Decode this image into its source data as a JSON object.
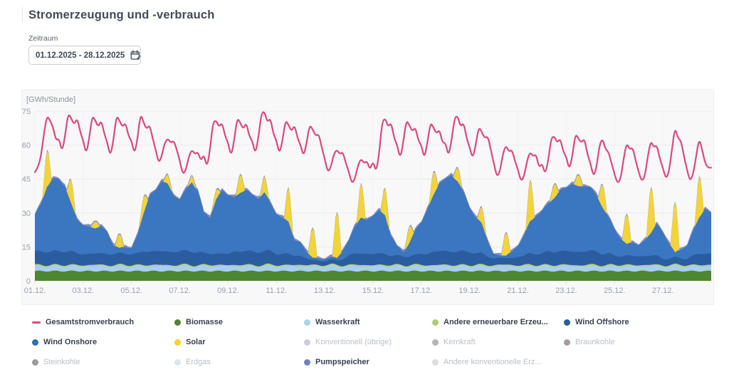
{
  "page": {
    "title": "Stromerzeugung und -verbrauch"
  },
  "filter": {
    "label": "Zeitraum",
    "value": "01.12.2025 - 28.12.2025",
    "icon": "calendar-edit-icon"
  },
  "chart": {
    "unit_label": "[GWh/Stunde]",
    "colors": {
      "plot_bg": "#f8f8f8",
      "grid": "#ececee",
      "grid_zero": "#e2e3e5",
      "grid_vertical": "#f1f2f3",
      "tick": "#d9dadc",
      "axis_text": "#9aa0a8"
    }
  },
  "chart_data": {
    "type": "area",
    "title": "Stromerzeugung und -verbrauch",
    "xlabel": "",
    "ylabel": "[GWh/Stunde]",
    "x_range": [
      "01.12.2025",
      "28.12.2025"
    ],
    "ylim": [
      0,
      78
    ],
    "y_ticks": [
      0,
      15,
      30,
      45,
      60,
      75
    ],
    "x_ticks": [
      "01.12.",
      "03.12.",
      "05.12.",
      "07.12.",
      "09.12.",
      "11.12.",
      "13.12.",
      "15.12.",
      "17.12.",
      "19.12.",
      "21.12.",
      "23.12.",
      "25.12.",
      "27.12."
    ],
    "days": 28,
    "consumption": {
      "name": "Gesamtstromverbrauch",
      "color": "#d9497f",
      "sample_hours": 3,
      "values": [
        48,
        50,
        55,
        65,
        73,
        71,
        68,
        62,
        63,
        57,
        64,
        74,
        72,
        69,
        72,
        66,
        62,
        56,
        63,
        73,
        71,
        68,
        71,
        65,
        61,
        55,
        62,
        73,
        71,
        68,
        70,
        64,
        62,
        56,
        63,
        74,
        70,
        67,
        69,
        63,
        58,
        52,
        55,
        61,
        63,
        61,
        62,
        58,
        53,
        47,
        49,
        55,
        58,
        56,
        57,
        53,
        56,
        50,
        58,
        70,
        71,
        68,
        70,
        64,
        61,
        55,
        62,
        72,
        70,
        67,
        70,
        64,
        62,
        56,
        63,
        74,
        75,
        70,
        72,
        65,
        62,
        56,
        62,
        71,
        69,
        66,
        69,
        63,
        60,
        55,
        61,
        69,
        67,
        64,
        65,
        59,
        54,
        48,
        50,
        56,
        58,
        56,
        57,
        52,
        48,
        43,
        45,
        51,
        54,
        52,
        53,
        49,
        53,
        48,
        56,
        70,
        72,
        68,
        70,
        63,
        60,
        54,
        61,
        71,
        69,
        66,
        68,
        62,
        60,
        54,
        61,
        70,
        68,
        65,
        67,
        61,
        61,
        55,
        62,
        72,
        73,
        68,
        70,
        63,
        59,
        54,
        60,
        68,
        66,
        63,
        64,
        58,
        52,
        46,
        48,
        56,
        60,
        57,
        58,
        53,
        49,
        44,
        46,
        53,
        57,
        55,
        56,
        50,
        52,
        47,
        53,
        63,
        64,
        61,
        63,
        57,
        55,
        49,
        55,
        65,
        63,
        61,
        63,
        56,
        52,
        46,
        50,
        60,
        63,
        58,
        57,
        52,
        47,
        43,
        45,
        54,
        61,
        58,
        59,
        53,
        48,
        44,
        46,
        55,
        62,
        59,
        60,
        54,
        50,
        45,
        48,
        58,
        68,
        63,
        62,
        55,
        49,
        44,
        47,
        55,
        63,
        58,
        52,
        50,
        50
      ]
    },
    "stack_order": [
      "biomasse",
      "wasserkraft",
      "andere_erneuerbare",
      "wind_offshore",
      "wind_onshore",
      "solar",
      "pumpspeicher"
    ],
    "series": {
      "biomasse": {
        "name": "Biomasse",
        "color": "#4f8630",
        "base": 4.3,
        "wiggle": 0.25,
        "freq": 9.3,
        "phase": 0
      },
      "wasserkraft": {
        "name": "Wasserkraft",
        "color": "#a8d0ea",
        "base": 2.2,
        "wiggle": 0.3,
        "freq": 7.1,
        "phase": 2
      },
      "andere_erneuerbare": {
        "name": "Andere erneuerbare Erzeugung",
        "color": "#b6cf7c",
        "base": 0.5,
        "wiggle": 0.12,
        "freq": 5.2,
        "phase": 1
      },
      "wind_offshore": {
        "name": "Wind Offshore",
        "color": "#2a5d9f",
        "sample_hours": 6,
        "values": [
          6,
          6,
          6,
          6,
          6,
          6,
          6,
          5,
          5,
          5,
          5,
          5,
          5,
          5,
          5,
          5,
          5,
          5,
          6,
          6,
          6,
          6,
          6,
          6,
          6,
          6,
          6,
          6,
          5,
          5,
          5,
          5,
          5,
          6,
          6,
          6,
          6,
          6,
          6,
          6,
          5,
          5,
          5,
          4,
          4,
          3,
          2,
          2,
          2,
          2,
          2,
          3,
          4,
          5,
          5,
          5,
          5,
          5,
          5,
          4,
          4,
          4,
          4,
          4,
          5,
          5,
          6,
          6,
          6,
          6,
          6,
          6,
          6,
          5,
          5,
          4,
          3,
          3,
          3,
          3,
          4,
          4,
          5,
          5,
          5,
          6,
          6,
          6,
          6,
          6,
          6,
          6,
          6,
          6,
          5,
          5,
          4,
          4,
          4,
          4,
          4,
          4,
          4,
          4,
          3,
          3,
          3,
          3,
          3,
          4,
          5,
          5,
          5
        ]
      },
      "wind_onshore": {
        "name": "Wind Onshore",
        "color": "#3b76c0",
        "sample_hours": 6,
        "values": [
          16,
          21,
          29,
          32,
          32,
          29,
          21,
          15,
          13,
          12,
          11,
          12,
          10,
          4,
          2,
          3,
          3,
          8,
          17,
          25,
          27,
          31,
          30,
          25,
          23,
          27,
          31,
          27,
          18,
          16,
          24,
          28,
          26,
          24,
          26,
          27,
          25,
          24,
          26,
          21,
          18,
          16,
          14,
          7,
          6,
          3,
          1,
          1,
          1,
          1,
          1,
          4,
          7,
          12,
          16,
          15,
          17,
          19,
          17,
          9,
          4,
          2,
          6,
          11,
          14,
          20,
          25,
          30,
          32,
          34,
          31,
          26,
          20,
          16,
          13,
          7,
          2,
          1,
          1,
          3,
          5,
          9,
          14,
          17,
          19,
          21,
          24,
          27,
          28,
          30,
          29,
          29,
          28,
          25,
          21,
          16,
          12,
          8,
          5,
          6,
          5,
          7,
          10,
          14,
          12,
          7,
          2,
          4,
          6,
          11,
          16,
          20,
          18
        ]
      },
      "solar": {
        "name": "Solar",
        "color": "#f3d438",
        "midday_window": [
          0.33,
          0.68
        ],
        "daily_peaks": [
          16,
          10,
          3,
          6,
          7,
          4,
          3,
          4,
          8,
          7,
          15,
          13,
          20,
          15,
          12,
          7,
          10,
          6,
          7,
          10,
          18,
          6,
          5,
          10,
          13,
          20,
          22,
          18
        ]
      },
      "pumpspeicher": {
        "name": "Pumpspeicher",
        "color": "#828cc8",
        "daily_pattern": [
          0.3,
          1.1,
          0.5,
          0.9
        ]
      }
    }
  },
  "legend": {
    "rows": [
      [
        {
          "id": "gesamtstromverbrauch",
          "label": "Gesamtstromverbrauch",
          "color": "#d9497f",
          "marker": "dash",
          "active": true
        },
        {
          "id": "biomasse",
          "label": "Biomasse",
          "color": "#4f8630",
          "marker": "dot",
          "active": true
        },
        {
          "id": "wasserkraft",
          "label": "Wasserkraft",
          "color": "#a8d4f0",
          "marker": "dot",
          "active": true
        },
        {
          "id": "andere-erneuerbare",
          "label": "Andere erneuerbare Erzeu...",
          "color": "#aecb6e",
          "marker": "dot",
          "active": true
        },
        {
          "id": "wind-offshore",
          "label": "Wind Offshore",
          "color": "#235e9f",
          "marker": "dot",
          "active": true
        }
      ],
      [
        {
          "id": "wind-onshore",
          "label": "Wind Onshore",
          "color": "#2e6fb8",
          "marker": "dot",
          "active": true
        },
        {
          "id": "solar",
          "label": "Solar",
          "color": "#f4d42c",
          "marker": "dot",
          "active": true
        },
        {
          "id": "konventionell-uebrige",
          "label": "Konventionell (übrige)",
          "color": "#c9cfda",
          "marker": "dot",
          "active": false
        },
        {
          "id": "kernkraft",
          "label": "Kernkraft",
          "color": "#b5b2ba",
          "marker": "dot",
          "active": false
        },
        {
          "id": "braunkohle",
          "label": "Braunkohle",
          "color": "#a89a9e",
          "marker": "dot",
          "active": false
        }
      ],
      [
        {
          "id": "steinkohle",
          "label": "Steinkohle",
          "color": "#9b9b9b",
          "marker": "dot",
          "active": false
        },
        {
          "id": "erdgas",
          "label": "Erdgas",
          "color": "#d9e6ee",
          "marker": "dot",
          "active": false
        },
        {
          "id": "pumpspeicher",
          "label": "Pumpspeicher",
          "color": "#7381c4",
          "marker": "dot",
          "active": true
        },
        {
          "id": "andere-konventionelle",
          "label": "Andere konventionelle Erz...",
          "color": "#dcdce2",
          "marker": "dot",
          "active": false
        }
      ]
    ]
  }
}
